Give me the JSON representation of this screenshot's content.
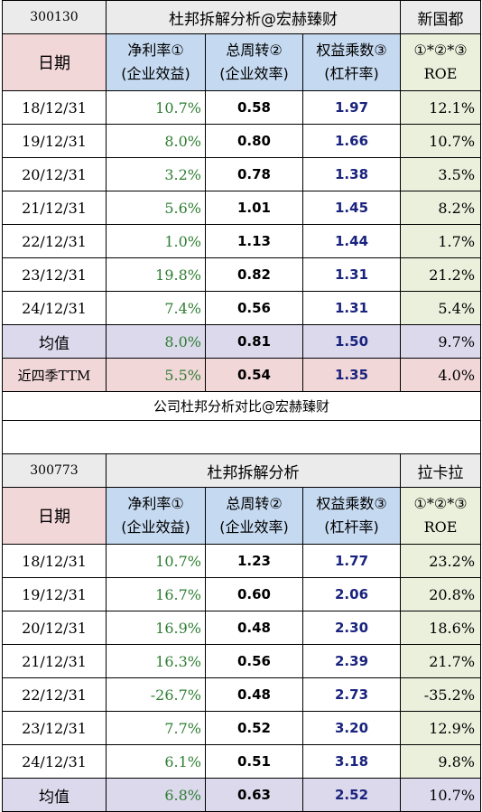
{
  "table1": {
    "code": "300130",
    "title": "杜邦拆解分析@宏赫臻财",
    "company": "新国都",
    "headers": {
      "date": "日期",
      "margin_l1": "净利率①",
      "margin_l2": "(企业效益)",
      "turnover_l1": "总周转②",
      "turnover_l2": "(企业效率)",
      "leverage_l1": "权益乘数③",
      "leverage_l2": "(杠杆率)",
      "roe_l1": "①*②*③",
      "roe_l2": "ROE"
    },
    "rows": [
      {
        "date": "18/12/31",
        "margin": "10.7%",
        "turnover": "0.58",
        "leverage": "1.97",
        "roe": "12.1%"
      },
      {
        "date": "19/12/31",
        "margin": "8.0%",
        "turnover": "0.80",
        "leverage": "1.66",
        "roe": "10.7%"
      },
      {
        "date": "20/12/31",
        "margin": "3.2%",
        "turnover": "0.78",
        "leverage": "1.38",
        "roe": "3.5%"
      },
      {
        "date": "21/12/31",
        "margin": "5.6%",
        "turnover": "1.01",
        "leverage": "1.45",
        "roe": "8.2%"
      },
      {
        "date": "22/12/31",
        "margin": "1.0%",
        "turnover": "1.13",
        "leverage": "1.44",
        "roe": "1.7%"
      },
      {
        "date": "23/12/31",
        "margin": "19.8%",
        "turnover": "0.82",
        "leverage": "1.31",
        "roe": "21.2%"
      },
      {
        "date": "24/12/31",
        "margin": "7.4%",
        "turnover": "0.56",
        "leverage": "1.31",
        "roe": "5.4%"
      }
    ],
    "average": {
      "label": "均值",
      "margin": "8.0%",
      "turnover": "0.81",
      "leverage": "1.50",
      "roe": "9.7%"
    },
    "ttm": {
      "label": "近四季TTM",
      "margin": "5.5%",
      "turnover": "0.54",
      "leverage": "1.35",
      "roe": "4.0%"
    }
  },
  "separator": "公司杜邦分析对比@宏赫臻财",
  "table2": {
    "code": "300773",
    "title": "杜邦拆解分析",
    "company": "拉卡拉",
    "headers": {
      "date": "日期",
      "margin_l1": "净利率①",
      "margin_l2": "(企业效益)",
      "turnover_l1": "总周转②",
      "turnover_l2": "(企业效率)",
      "leverage_l1": "权益乘数③",
      "leverage_l2": "(杠杆率)",
      "roe_l1": "①*②*③",
      "roe_l2": "ROE"
    },
    "rows": [
      {
        "date": "18/12/31",
        "margin": "10.7%",
        "turnover": "1.23",
        "leverage": "1.77",
        "roe": "23.2%"
      },
      {
        "date": "19/12/31",
        "margin": "16.7%",
        "turnover": "0.60",
        "leverage": "2.06",
        "roe": "20.8%"
      },
      {
        "date": "20/12/31",
        "margin": "16.9%",
        "turnover": "0.48",
        "leverage": "2.30",
        "roe": "18.6%"
      },
      {
        "date": "21/12/31",
        "margin": "16.3%",
        "turnover": "0.56",
        "leverage": "2.39",
        "roe": "21.7%"
      },
      {
        "date": "22/12/31",
        "margin": "-26.7%",
        "turnover": "0.48",
        "leverage": "2.73",
        "roe": "-35.2%"
      },
      {
        "date": "23/12/31",
        "margin": "7.7%",
        "turnover": "0.52",
        "leverage": "3.20",
        "roe": "12.9%"
      },
      {
        "date": "24/12/31",
        "margin": "6.1%",
        "turnover": "0.51",
        "leverage": "3.18",
        "roe": "9.8%"
      }
    ],
    "average": {
      "label": "均值",
      "margin": "6.8%",
      "turnover": "0.63",
      "leverage": "2.52",
      "roe": "10.7%"
    }
  }
}
